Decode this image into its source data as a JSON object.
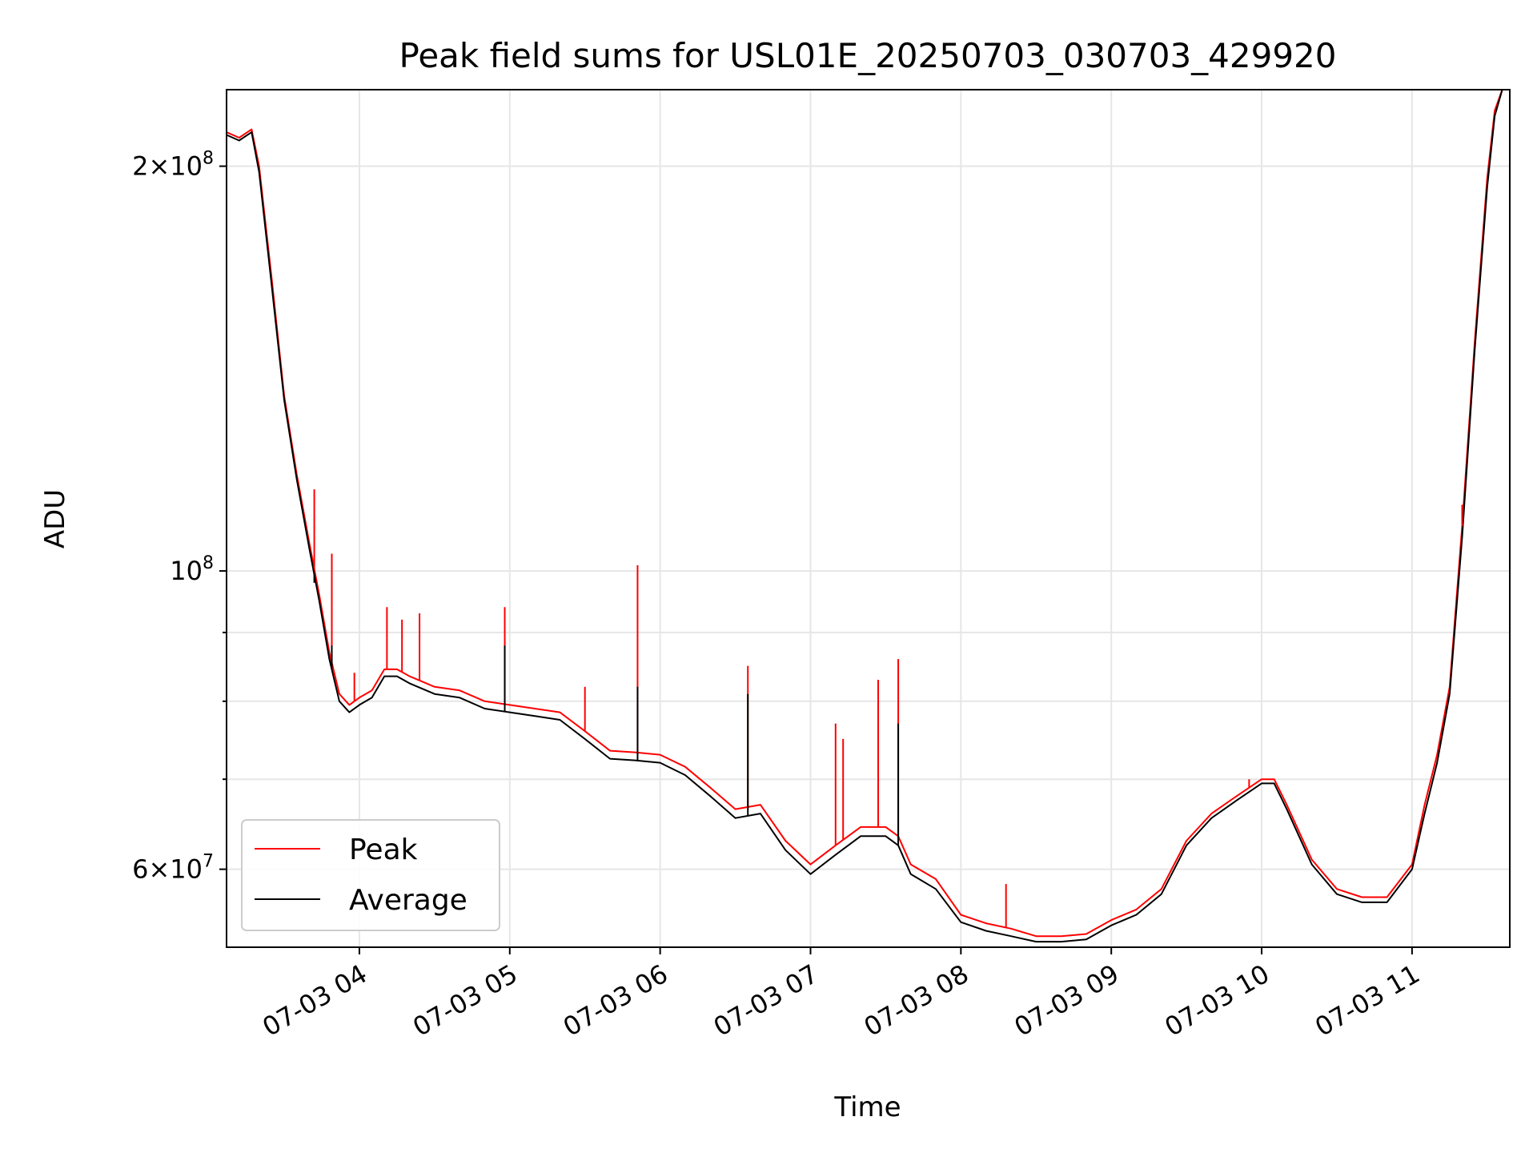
{
  "chart_data": {
    "type": "line",
    "title": "Peak field sums for USL01E_20250703_030703_429920",
    "xlabel": "Time",
    "ylabel": "ADU",
    "yscale": "log",
    "ylim": [
      52500000,
      228000000
    ],
    "xlim": [
      "2025-07-03 03:07",
      "2025-07-03 11:39"
    ],
    "grid": true,
    "legend_position": "lower-left",
    "x_ticks": [
      {
        "t": "2025-07-03 04:00",
        "label": "07-03 04"
      },
      {
        "t": "2025-07-03 05:00",
        "label": "07-03 05"
      },
      {
        "t": "2025-07-03 06:00",
        "label": "07-03 06"
      },
      {
        "t": "2025-07-03 07:00",
        "label": "07-03 07"
      },
      {
        "t": "2025-07-03 08:00",
        "label": "07-03 08"
      },
      {
        "t": "2025-07-03 09:00",
        "label": "07-03 09"
      },
      {
        "t": "2025-07-03 10:00",
        "label": "07-03 10"
      },
      {
        "t": "2025-07-03 11:00",
        "label": "07-03 11"
      }
    ],
    "y_major_ticks": [
      {
        "v": 60000000,
        "base": "6",
        "exp": "7"
      },
      {
        "v": 100000000,
        "base": "",
        "exp": "8"
      },
      {
        "v": 200000000,
        "base": "2",
        "exp": "8"
      }
    ],
    "y_minor_ticks": [
      70000000,
      80000000,
      90000000
    ],
    "series": [
      {
        "name": "Peak",
        "color": "#ff0000",
        "x": [
          "2025-07-03 03:07",
          "2025-07-03 03:12",
          "2025-07-03 03:17",
          "2025-07-03 03:20",
          "2025-07-03 03:25",
          "2025-07-03 03:30",
          "2025-07-03 03:35",
          "2025-07-03 03:40",
          "2025-07-03 03:44",
          "2025-07-03 03:48",
          "2025-07-03 03:52",
          "2025-07-03 03:56",
          "2025-07-03 04:00",
          "2025-07-03 04:05",
          "2025-07-03 04:10",
          "2025-07-03 04:15",
          "2025-07-03 04:20",
          "2025-07-03 04:30",
          "2025-07-03 04:40",
          "2025-07-03 04:50",
          "2025-07-03 05:00",
          "2025-07-03 05:10",
          "2025-07-03 05:20",
          "2025-07-03 05:30",
          "2025-07-03 05:40",
          "2025-07-03 05:50",
          "2025-07-03 06:00",
          "2025-07-03 06:10",
          "2025-07-03 06:20",
          "2025-07-03 06:30",
          "2025-07-03 06:40",
          "2025-07-03 06:50",
          "2025-07-03 07:00",
          "2025-07-03 07:10",
          "2025-07-03 07:20",
          "2025-07-03 07:30",
          "2025-07-03 07:35",
          "2025-07-03 07:40",
          "2025-07-03 07:50",
          "2025-07-03 08:00",
          "2025-07-03 08:10",
          "2025-07-03 08:20",
          "2025-07-03 08:30",
          "2025-07-03 08:40",
          "2025-07-03 08:50",
          "2025-07-03 09:00",
          "2025-07-03 09:10",
          "2025-07-03 09:20",
          "2025-07-03 09:30",
          "2025-07-03 09:40",
          "2025-07-03 09:50",
          "2025-07-03 10:00",
          "2025-07-03 10:05",
          "2025-07-03 10:10",
          "2025-07-03 10:20",
          "2025-07-03 10:30",
          "2025-07-03 10:40",
          "2025-07-03 10:50",
          "2025-07-03 11:00",
          "2025-07-03 11:05",
          "2025-07-03 11:10",
          "2025-07-03 11:15",
          "2025-07-03 11:20",
          "2025-07-03 11:25",
          "2025-07-03 11:30",
          "2025-07-03 11:33",
          "2025-07-03 11:36",
          "2025-07-03 11:39"
        ],
        "y": [
          212000000,
          210000000,
          213000000,
          200000000,
          165000000,
          135000000,
          118000000,
          105000000,
          96000000,
          87000000,
          81000000,
          79500000,
          80500000,
          81500000,
          84500000,
          84500000,
          83500000,
          82000000,
          81500000,
          80000000,
          79500000,
          79000000,
          78500000,
          76000000,
          73500000,
          73300000,
          73000000,
          71500000,
          69000000,
          66500000,
          67000000,
          63000000,
          60500000,
          62500000,
          64500000,
          64500000,
          63500000,
          60500000,
          59000000,
          55500000,
          54700000,
          54200000,
          53500000,
          53500000,
          53700000,
          55000000,
          56000000,
          58000000,
          63000000,
          66000000,
          68000000,
          70000000,
          70000000,
          67000000,
          61000000,
          58000000,
          57200000,
          57200000,
          60500000,
          67000000,
          73000000,
          82000000,
          108000000,
          148000000,
          196000000,
          220000000,
          228000000,
          228000000
        ]
      },
      {
        "name": "Average",
        "color": "#000000",
        "x": [
          "2025-07-03 03:07",
          "2025-07-03 03:12",
          "2025-07-03 03:17",
          "2025-07-03 03:20",
          "2025-07-03 03:25",
          "2025-07-03 03:30",
          "2025-07-03 03:35",
          "2025-07-03 03:40",
          "2025-07-03 03:44",
          "2025-07-03 03:48",
          "2025-07-03 03:52",
          "2025-07-03 03:56",
          "2025-07-03 04:00",
          "2025-07-03 04:05",
          "2025-07-03 04:10",
          "2025-07-03 04:15",
          "2025-07-03 04:20",
          "2025-07-03 04:30",
          "2025-07-03 04:40",
          "2025-07-03 04:50",
          "2025-07-03 05:00",
          "2025-07-03 05:10",
          "2025-07-03 05:20",
          "2025-07-03 05:30",
          "2025-07-03 05:40",
          "2025-07-03 05:50",
          "2025-07-03 06:00",
          "2025-07-03 06:10",
          "2025-07-03 06:20",
          "2025-07-03 06:30",
          "2025-07-03 06:40",
          "2025-07-03 06:50",
          "2025-07-03 07:00",
          "2025-07-03 07:10",
          "2025-07-03 07:20",
          "2025-07-03 07:30",
          "2025-07-03 07:35",
          "2025-07-03 07:40",
          "2025-07-03 07:50",
          "2025-07-03 08:00",
          "2025-07-03 08:10",
          "2025-07-03 08:20",
          "2025-07-03 08:30",
          "2025-07-03 08:40",
          "2025-07-03 08:50",
          "2025-07-03 09:00",
          "2025-07-03 09:10",
          "2025-07-03 09:20",
          "2025-07-03 09:30",
          "2025-07-03 09:40",
          "2025-07-03 09:50",
          "2025-07-03 10:00",
          "2025-07-03 10:05",
          "2025-07-03 10:10",
          "2025-07-03 10:20",
          "2025-07-03 10:30",
          "2025-07-03 10:40",
          "2025-07-03 10:50",
          "2025-07-03 11:00",
          "2025-07-03 11:05",
          "2025-07-03 11:10",
          "2025-07-03 11:15",
          "2025-07-03 11:20",
          "2025-07-03 11:25",
          "2025-07-03 11:30",
          "2025-07-03 11:33",
          "2025-07-03 11:36",
          "2025-07-03 11:39"
        ],
        "y": [
          211000000,
          209000000,
          212000000,
          198000000,
          163000000,
          134000000,
          117000000,
          104000000,
          95000000,
          86000000,
          80000000,
          78500000,
          79500000,
          80500000,
          83500000,
          83500000,
          82500000,
          81000000,
          80500000,
          79000000,
          78500000,
          78000000,
          77500000,
          75000000,
          72500000,
          72300000,
          72000000,
          70500000,
          68000000,
          65500000,
          66000000,
          62000000,
          59500000,
          61500000,
          63500000,
          63500000,
          62500000,
          59500000,
          58000000,
          54800000,
          54000000,
          53500000,
          53000000,
          53000000,
          53200000,
          54500000,
          55500000,
          57500000,
          62500000,
          65500000,
          67500000,
          69500000,
          69500000,
          66500000,
          60500000,
          57500000,
          56700000,
          56700000,
          60000000,
          66000000,
          72000000,
          81000000,
          106000000,
          146000000,
          193000000,
          218000000,
          228000000,
          228000000
        ]
      }
    ],
    "peak_spikes": [
      {
        "t": "2025-07-03 03:42",
        "y": 115000000
      },
      {
        "t": "2025-07-03 03:49",
        "y": 103000000
      },
      {
        "t": "2025-07-03 03:58",
        "y": 84000000
      },
      {
        "t": "2025-07-03 04:11",
        "y": 94000000
      },
      {
        "t": "2025-07-03 04:17",
        "y": 92000000
      },
      {
        "t": "2025-07-03 04:24",
        "y": 93000000
      },
      {
        "t": "2025-07-03 04:58",
        "y": 94000000
      },
      {
        "t": "2025-07-03 05:30",
        "y": 82000000
      },
      {
        "t": "2025-07-03 05:51",
        "y": 101000000
      },
      {
        "t": "2025-07-03 06:35",
        "y": 85000000
      },
      {
        "t": "2025-07-03 07:10",
        "y": 77000000
      },
      {
        "t": "2025-07-03 07:13",
        "y": 75000000
      },
      {
        "t": "2025-07-03 07:27",
        "y": 83000000
      },
      {
        "t": "2025-07-03 07:35",
        "y": 86000000
      },
      {
        "t": "2025-07-03 08:18",
        "y": 58500000
      },
      {
        "t": "2025-07-03 09:55",
        "y": 70000000
      },
      {
        "t": "2025-07-03 11:20",
        "y": 112000000
      }
    ],
    "average_spikes": [
      {
        "t": "2025-07-03 03:42",
        "y": 98000000
      },
      {
        "t": "2025-07-03 03:49",
        "y": 88000000
      },
      {
        "t": "2025-07-03 04:58",
        "y": 88000000
      },
      {
        "t": "2025-07-03 05:51",
        "y": 82000000
      },
      {
        "t": "2025-07-03 06:35",
        "y": 81000000
      },
      {
        "t": "2025-07-03 07:35",
        "y": 77000000
      }
    ]
  }
}
